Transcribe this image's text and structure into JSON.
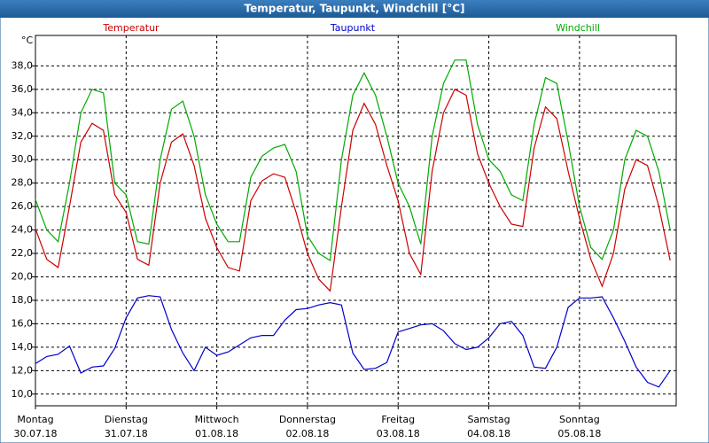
{
  "chart_data": {
    "type": "line",
    "title": "Temperatur, Taupunkt, Windchill [°C]",
    "y_label": "°C",
    "x": [
      0,
      3,
      6,
      9,
      12,
      15,
      18,
      21,
      24,
      27,
      30,
      33,
      36,
      39,
      42,
      45,
      48,
      51,
      54,
      57,
      60,
      63,
      66,
      69,
      72,
      75,
      78,
      81,
      84,
      87,
      90,
      93,
      96,
      99,
      102,
      105,
      108,
      111,
      114,
      117,
      120,
      123,
      126,
      129,
      132,
      135,
      138,
      141,
      144,
      147,
      150,
      153,
      156,
      159,
      162,
      165,
      168
    ],
    "xlim": [
      0,
      169.6
    ],
    "xticks": [
      {
        "value": 0,
        "label": "Montag",
        "date": "30.07.18"
      },
      {
        "value": 24,
        "label": "Dienstag",
        "date": "31.07.18"
      },
      {
        "value": 48,
        "label": "Mittwoch",
        "date": "01.08.18"
      },
      {
        "value": 72,
        "label": "Donnerstag",
        "date": "02.08.18"
      },
      {
        "value": 96,
        "label": "Freitag",
        "date": "03.08.18"
      },
      {
        "value": 120,
        "label": "Samstag",
        "date": "04.08.18"
      },
      {
        "value": 144,
        "label": "Sonntag",
        "date": "05.08.18"
      }
    ],
    "ylim": [
      9.0,
      40.6
    ],
    "yticks": [
      {
        "value": 10,
        "label": "10,0"
      },
      {
        "value": 12,
        "label": "12,0"
      },
      {
        "value": 14,
        "label": "14,0"
      },
      {
        "value": 16,
        "label": "16,0"
      },
      {
        "value": 18,
        "label": "18,0"
      },
      {
        "value": 20,
        "label": "20,0"
      },
      {
        "value": 22,
        "label": "22,0"
      },
      {
        "value": 24,
        "label": "24,0"
      },
      {
        "value": 26,
        "label": "26,0"
      },
      {
        "value": 28,
        "label": "28,0"
      },
      {
        "value": 30,
        "label": "30,0"
      },
      {
        "value": 32,
        "label": "32,0"
      },
      {
        "value": 34,
        "label": "34,0"
      },
      {
        "value": 36,
        "label": "36,0"
      },
      {
        "value": 38,
        "label": "38,0"
      }
    ],
    "grid": true,
    "series": [
      {
        "name": "Temperatur",
        "color": "#cc0000",
        "values": [
          24.1,
          21.5,
          20.8,
          26,
          31.5,
          33.1,
          32.5,
          27,
          25.5,
          21.5,
          21,
          28,
          31.5,
          32.2,
          29.5,
          25,
          22.5,
          20.8,
          20.5,
          26.5,
          28.2,
          28.8,
          28.5,
          25.5,
          22,
          19.8,
          18.8,
          26,
          32.5,
          34.8,
          33,
          29.5,
          26.5,
          22,
          20.2,
          29,
          34,
          36,
          35.5,
          30.5,
          28,
          26,
          24.5,
          24.3,
          31,
          34.5,
          33.5,
          29,
          25,
          21.5,
          19.2,
          22,
          27.5,
          30,
          29.5,
          26,
          21.4
        ]
      },
      {
        "name": "Taupunkt",
        "color": "#0000cc",
        "values": [
          12.6,
          13.2,
          13.4,
          14.1,
          11.8,
          12.3,
          12.4,
          13.9,
          16.5,
          18.2,
          18.4,
          18.3,
          15.5,
          13.5,
          12,
          14,
          13.3,
          13.6,
          14.2,
          14.8,
          15,
          15,
          16.3,
          17.2,
          17.3,
          17.6,
          17.8,
          17.6,
          13.5,
          12.1,
          12.2,
          12.7,
          15.3,
          15.6,
          15.9,
          16,
          15.4,
          14.3,
          13.8,
          14,
          14.8,
          16,
          16.2,
          15,
          12.3,
          12.2,
          14,
          17.4,
          18.2,
          18.2,
          18.3,
          16.5,
          14.5,
          12.3,
          11,
          10.6,
          12
        ]
      },
      {
        "name": "Windchill",
        "color": "#00aa00",
        "values": [
          26.6,
          24,
          23,
          28,
          34,
          36,
          35.7,
          28,
          27,
          23,
          22.8,
          30,
          34.3,
          35,
          32,
          27,
          24.5,
          23,
          23,
          28.5,
          30.3,
          31,
          31.3,
          29,
          23.5,
          22,
          21.4,
          30,
          35.5,
          37.4,
          35.5,
          32,
          28,
          26,
          22.8,
          32,
          36.5,
          38.5,
          38.5,
          33,
          30,
          29,
          27,
          26.5,
          33,
          37,
          36.5,
          31.5,
          26,
          22.5,
          21.5,
          24,
          30,
          32.5,
          32,
          29,
          24
        ]
      }
    ]
  }
}
